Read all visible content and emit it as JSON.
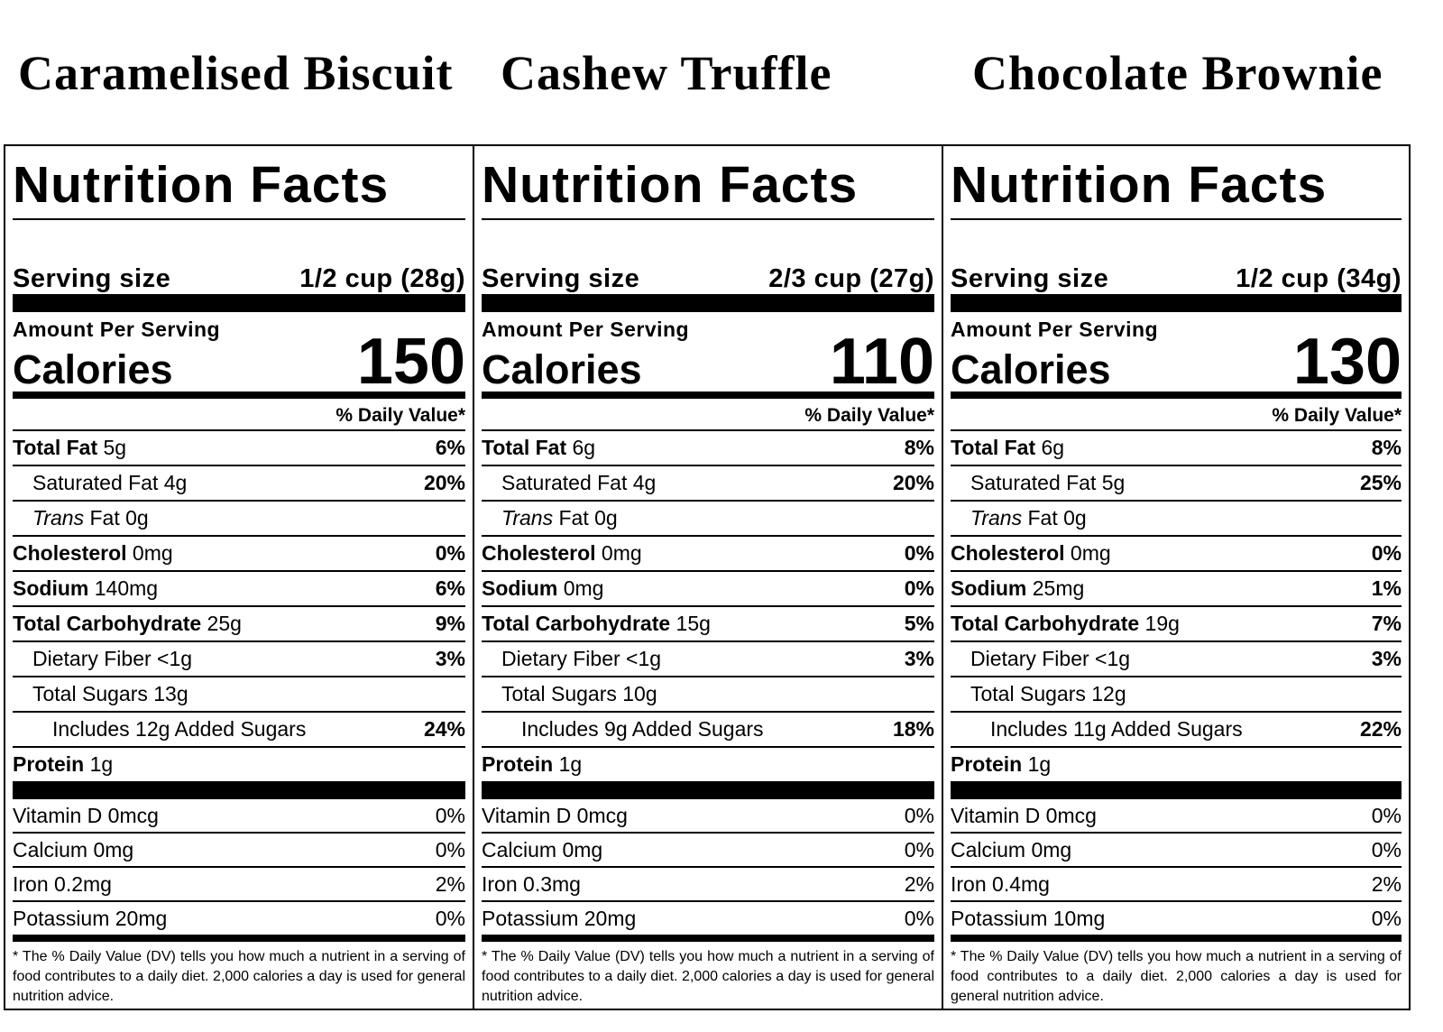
{
  "labels": [
    {
      "product": "Caramelised Biscuit",
      "heading": "Nutrition Facts",
      "serving_label": "Serving size",
      "serving_size": "1/2 cup (28g)",
      "amount_label": "Amount Per Serving",
      "calories_label": "Calories",
      "calories": 150,
      "dv_header": "% Daily Value*",
      "rows": [
        {
          "name": "Total Fat",
          "amount": "5g",
          "dv": "6%"
        },
        {
          "name": "Saturated Fat",
          "amount": "4g",
          "dv": "20%"
        },
        {
          "name_italic": "Trans",
          "name": "Fat",
          "amount": "0g"
        },
        {
          "name": "Cholesterol",
          "amount": "0mg",
          "dv": "0%"
        },
        {
          "name": "Sodium",
          "amount": "140mg",
          "dv": "6%"
        },
        {
          "name": "Total Carbohydrate",
          "amount": "25g",
          "dv": "9%"
        },
        {
          "name": "Dietary Fiber",
          "amount": "<1g",
          "dv": "3%"
        },
        {
          "name": "Total Sugars",
          "amount": "13g"
        },
        {
          "name": "Includes 12g Added Sugars",
          "dv": "24%"
        },
        {
          "name": "Protein",
          "amount": "1g"
        }
      ],
      "vitamins": [
        {
          "text": "Vitamin D 0mcg",
          "dv": "0%"
        },
        {
          "text": "Calcium 0mg",
          "dv": "0%"
        },
        {
          "text": "Iron 0.2mg",
          "dv": "2%"
        },
        {
          "text": "Potassium 20mg",
          "dv": "0%"
        }
      ],
      "footnote": "* The % Daily Value (DV) tells you how much a nutrient in a serving of food contributes to a daily diet. 2,000 calories a day is used for general nutrition advice."
    },
    {
      "product": "Cashew Truffle",
      "heading": "Nutrition Facts",
      "serving_label": "Serving size",
      "serving_size": "2/3 cup (27g)",
      "amount_label": "Amount Per Serving",
      "calories_label": "Calories",
      "calories": 110,
      "dv_header": "% Daily Value*",
      "rows": [
        {
          "name": "Total Fat",
          "amount": "6g",
          "dv": "8%"
        },
        {
          "name": "Saturated Fat",
          "amount": "4g",
          "dv": "20%"
        },
        {
          "name_italic": "Trans",
          "name": "Fat",
          "amount": "0g"
        },
        {
          "name": "Cholesterol",
          "amount": "0mg",
          "dv": "0%"
        },
        {
          "name": "Sodium",
          "amount": "0mg",
          "dv": "0%"
        },
        {
          "name": "Total Carbohydrate",
          "amount": "15g",
          "dv": "5%"
        },
        {
          "name": "Dietary Fiber",
          "amount": "<1g",
          "dv": "3%"
        },
        {
          "name": "Total Sugars",
          "amount": "10g"
        },
        {
          "name": "Includes 9g Added Sugars",
          "dv": "18%"
        },
        {
          "name": "Protein",
          "amount": "1g"
        }
      ],
      "vitamins": [
        {
          "text": "Vitamin D 0mcg",
          "dv": "0%"
        },
        {
          "text": "Calcium 0mg",
          "dv": "0%"
        },
        {
          "text": "Iron 0.3mg",
          "dv": "2%"
        },
        {
          "text": "Potassium 20mg",
          "dv": "0%"
        }
      ],
      "footnote": "* The % Daily Value (DV) tells you how much a nutrient in a serving of food contributes to a daily diet. 2,000 calories a day is used for general nutrition advice."
    },
    {
      "product": "Chocolate Brownie",
      "heading": "Nutrition Facts",
      "serving_label": "Serving size",
      "serving_size": "1/2 cup (34g)",
      "amount_label": "Amount Per Serving",
      "calories_label": "Calories",
      "calories": 130,
      "dv_header": "% Daily Value*",
      "rows": [
        {
          "name": "Total Fat",
          "amount": "6g",
          "dv": "8%"
        },
        {
          "name": "Saturated Fat",
          "amount": "5g",
          "dv": "25%"
        },
        {
          "name_italic": "Trans",
          "name": "Fat",
          "amount": "0g"
        },
        {
          "name": "Cholesterol",
          "amount": "0mg",
          "dv": "0%"
        },
        {
          "name": "Sodium",
          "amount": "25mg",
          "dv": "1%"
        },
        {
          "name": "Total Carbohydrate",
          "amount": "19g",
          "dv": "7%"
        },
        {
          "name": "Dietary Fiber",
          "amount": "<1g",
          "dv": "3%"
        },
        {
          "name": "Total Sugars",
          "amount": "12g"
        },
        {
          "name": "Includes 11g Added Sugars",
          "dv": "22%"
        },
        {
          "name": "Protein",
          "amount": "1g"
        }
      ],
      "vitamins": [
        {
          "text": "Vitamin D 0mcg",
          "dv": "0%"
        },
        {
          "text": "Calcium 0mg",
          "dv": "0%"
        },
        {
          "text": "Iron 0.4mg",
          "dv": "2%"
        },
        {
          "text": "Potassium 10mg",
          "dv": "0%"
        }
      ],
      "footnote": "* The % Daily Value (DV) tells you how much a nutrient in a serving of food contributes to a daily diet. 2,000 calories a day is used for general nutrition advice."
    }
  ]
}
